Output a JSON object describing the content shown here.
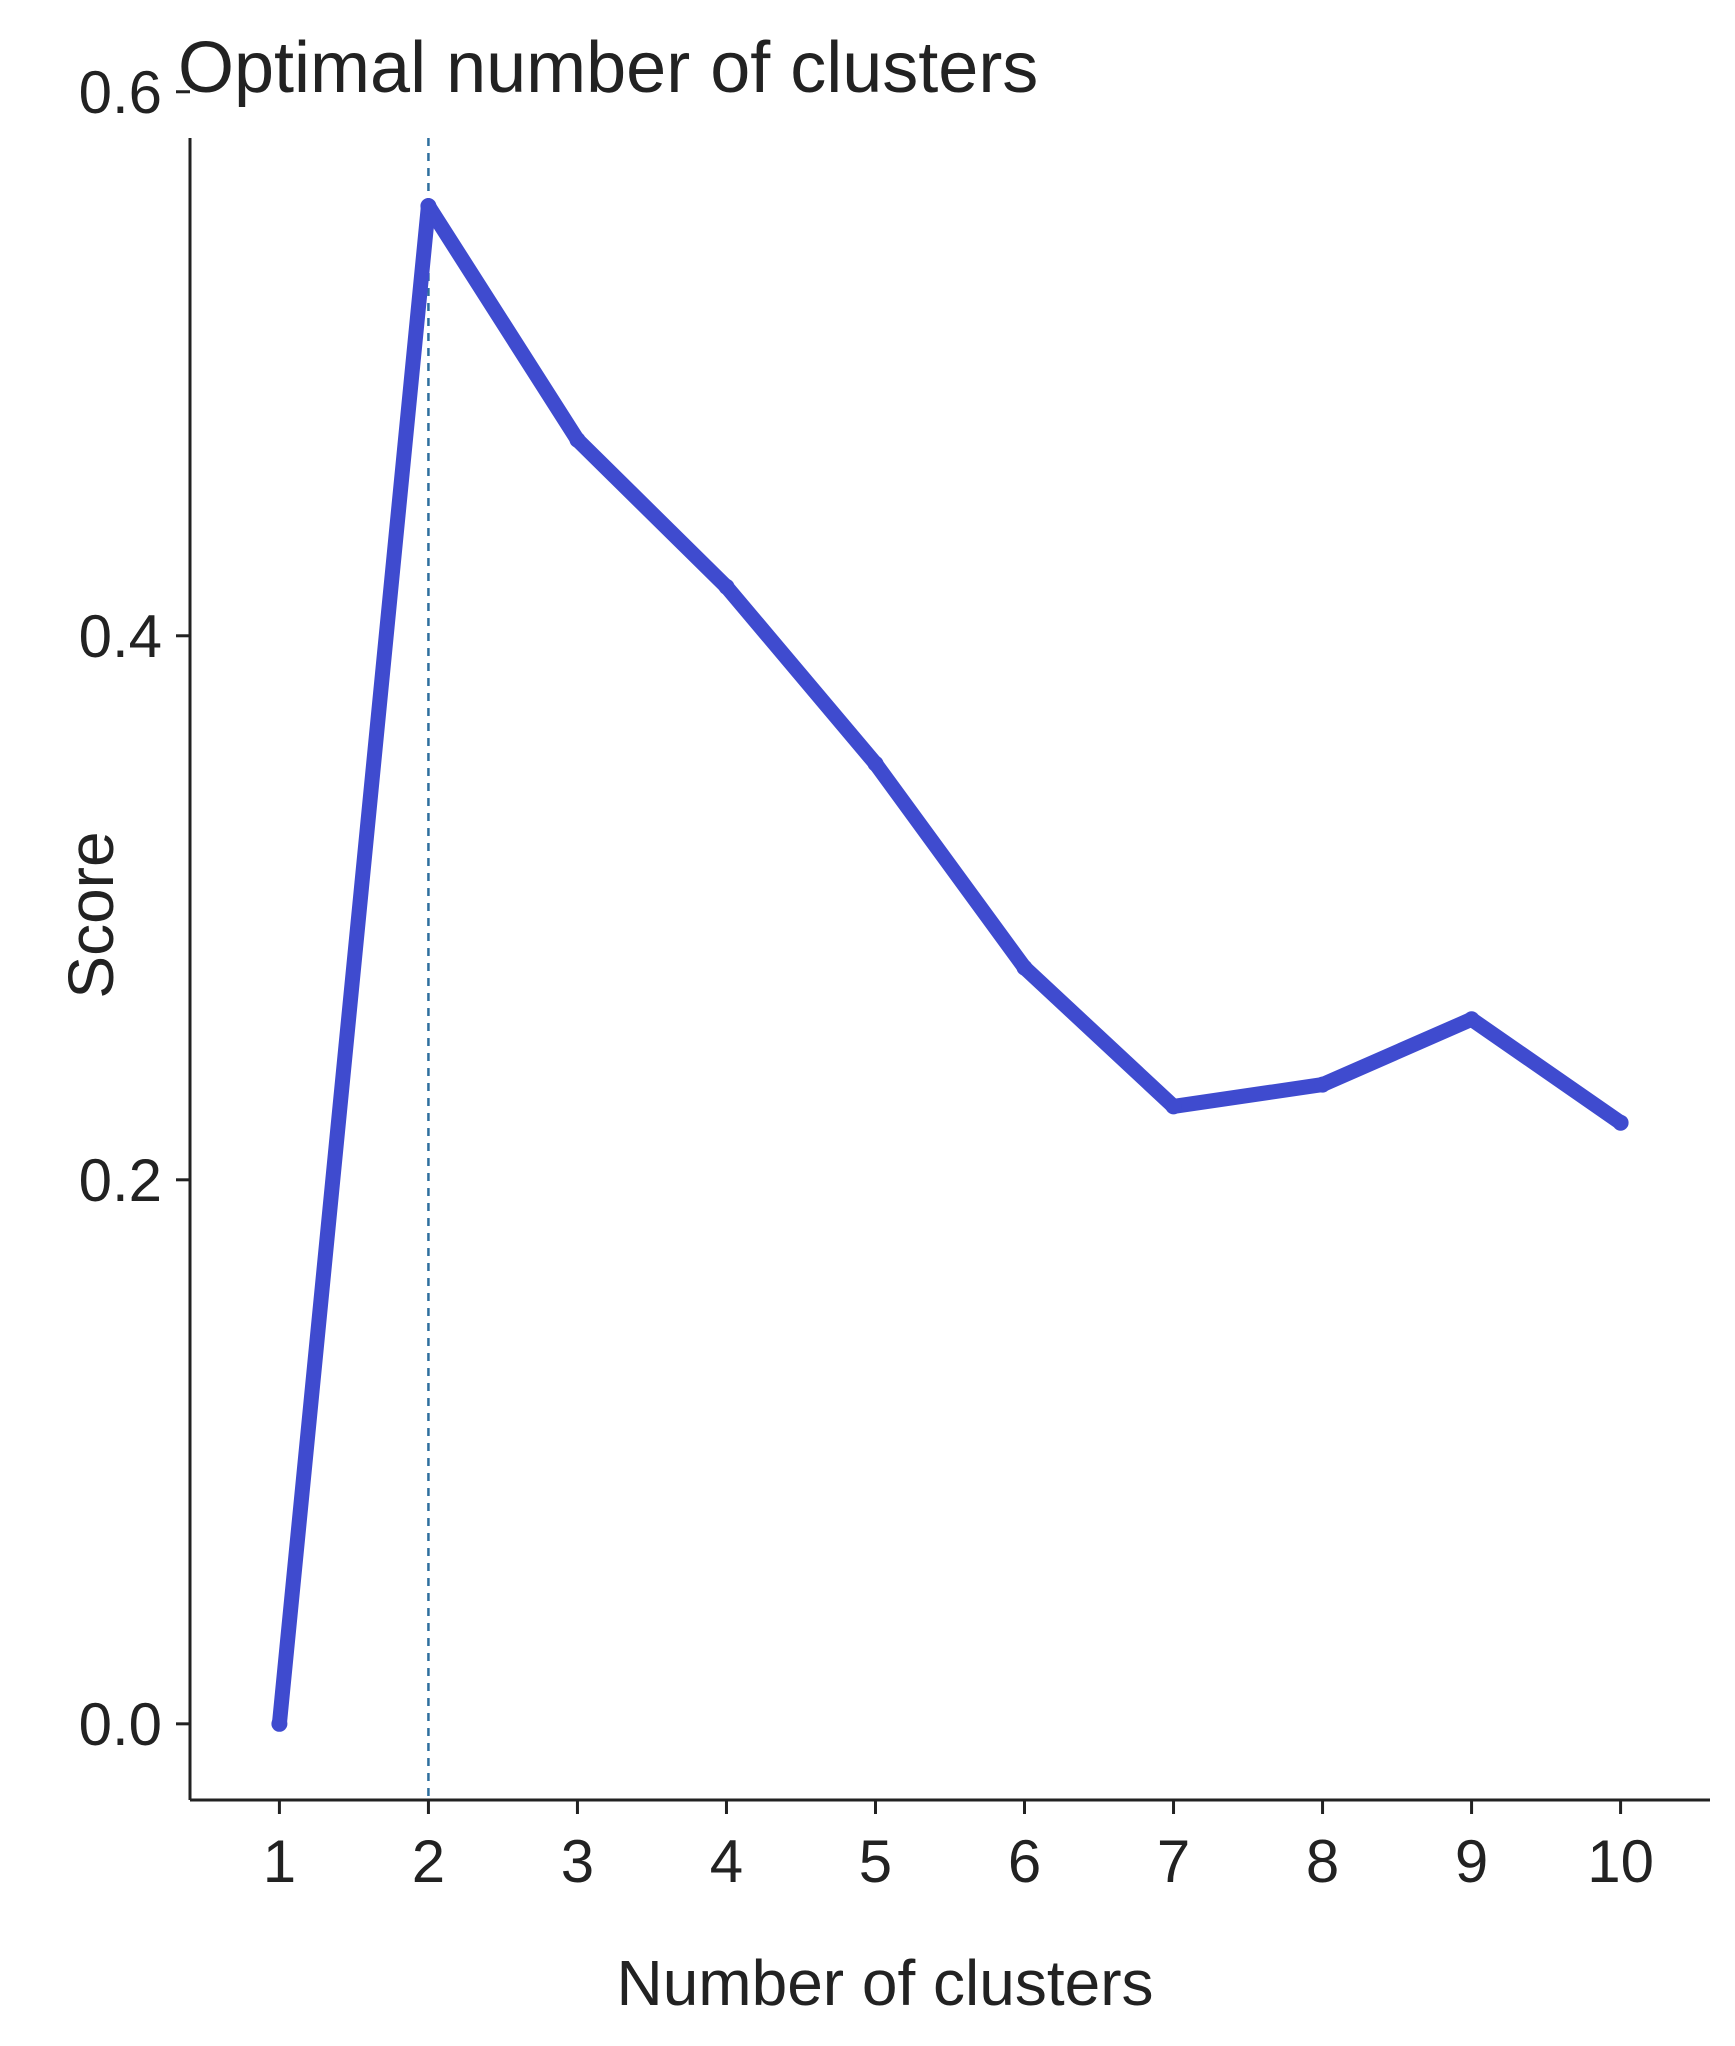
{
  "chart_data": {
    "type": "line",
    "title": "Optimal number of clusters",
    "xlabel": "Number of clusters",
    "ylabel": "Score",
    "x": [
      1,
      2,
      3,
      4,
      5,
      6,
      7,
      8,
      9,
      10
    ],
    "series": [
      {
        "values": [
          0.0,
          0.558,
          0.472,
          0.418,
          0.353,
          0.278,
          0.227,
          0.235,
          0.259,
          0.221
        ]
      }
    ],
    "xticks": [
      "1",
      "2",
      "3",
      "4",
      "5",
      "6",
      "7",
      "8",
      "9",
      "10"
    ],
    "yticks": [
      "0.0",
      "0.2",
      "0.4",
      "0.6"
    ],
    "xlim": [
      0.4,
      10.6
    ],
    "ylim": [
      -0.028,
      0.583
    ],
    "optimal_k": 2,
    "grid": false,
    "legend": "none",
    "colors": {
      "line": "#3f4bcf",
      "marker_line": "#2e6f9e",
      "axis": "#222222"
    }
  }
}
